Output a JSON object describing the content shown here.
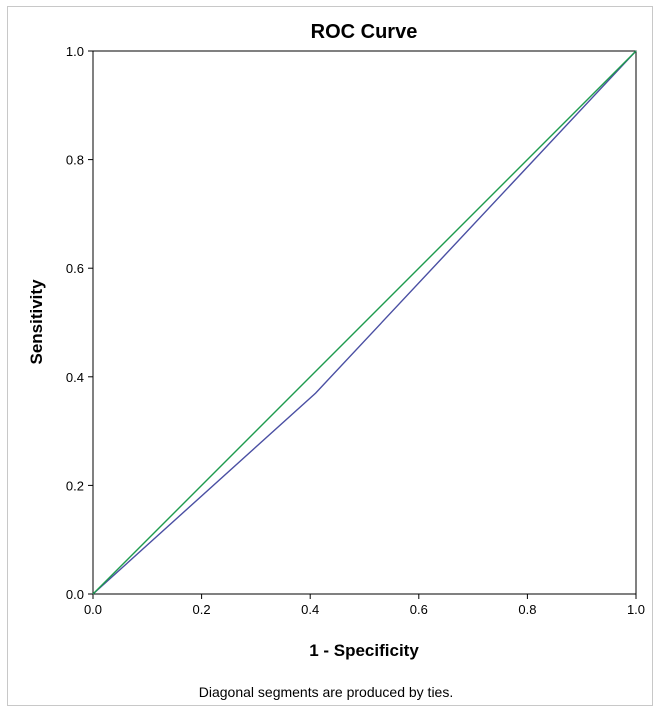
{
  "chart_data": {
    "type": "line",
    "title": "ROC Curve",
    "xlabel": "1 - Specificity",
    "ylabel": "Sensitivity",
    "xlim": [
      0,
      1
    ],
    "ylim": [
      0,
      1
    ],
    "x_ticks": [
      "0.0",
      "0.2",
      "0.4",
      "0.6",
      "0.8",
      "1.0"
    ],
    "y_ticks": [
      "0.0",
      "0.2",
      "0.4",
      "0.6",
      "0.8",
      "1.0"
    ],
    "grid": false,
    "legend": false,
    "series": [
      {
        "color": "#4a4fa3",
        "x": [
          0.0,
          0.41,
          1.0
        ],
        "y": [
          0.0,
          0.37,
          1.0
        ]
      },
      {
        "color": "#1e9b4e",
        "x": [
          0.0,
          1.0
        ],
        "y": [
          0.0,
          1.0
        ]
      }
    ],
    "footnote": "Diagonal segments are produced by ties."
  }
}
